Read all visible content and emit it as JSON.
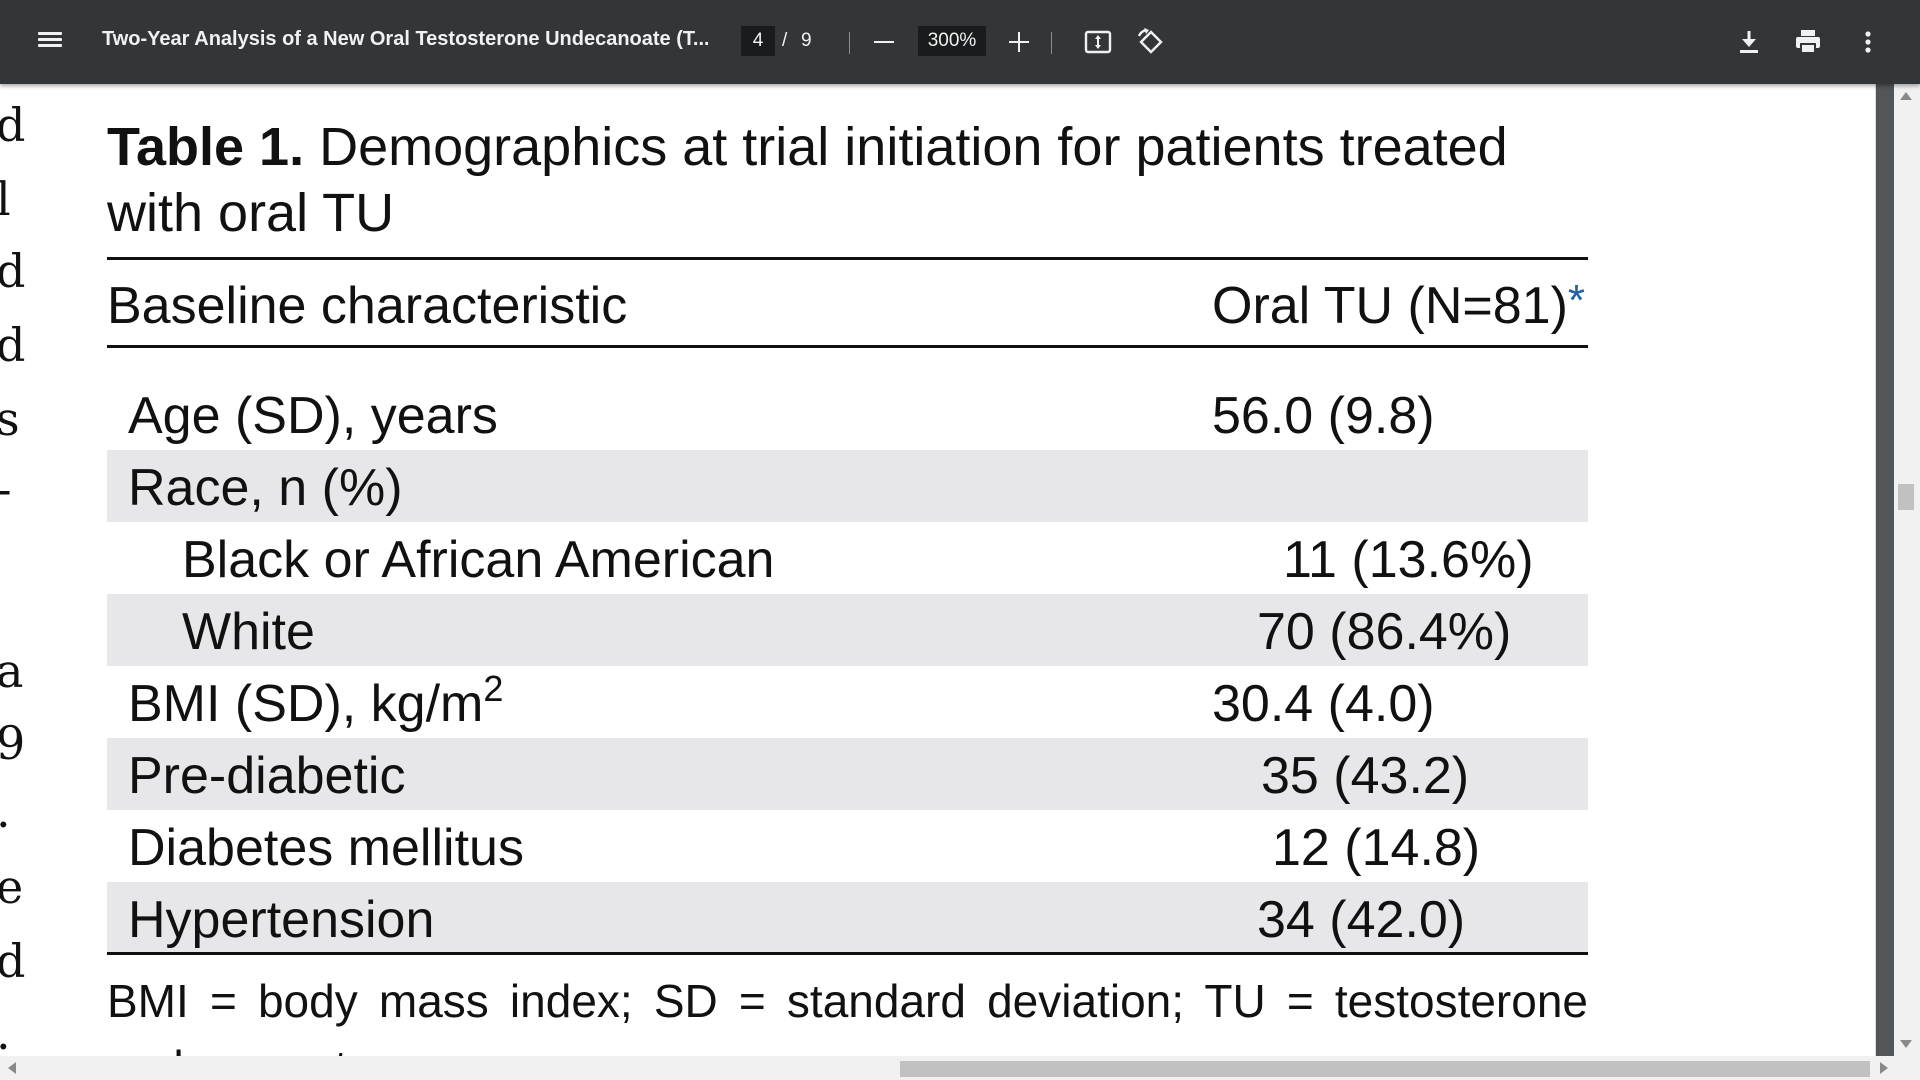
{
  "toolbar": {
    "document_title": "Two-Year Analysis of a New Oral Testosterone Undecanoate (T...",
    "current_page": "4",
    "page_separator": "/",
    "total_pages": "9",
    "zoom_level": "300%",
    "icons": [
      "menu-icon",
      "zoom-out-icon",
      "zoom-in-icon",
      "fit-to-page-icon",
      "rotate-icon",
      "download-icon",
      "print-icon",
      "more-options-icon"
    ]
  },
  "left_column_fragments": [
    "d",
    "l",
    "d",
    "d",
    "s",
    "-",
    "a",
    "9",
    ".",
    "e",
    "d",
    "."
  ],
  "table": {
    "label": "Table 1.",
    "title": "Demographics at trial initiation for patients treated with oral TU",
    "header_characteristic": "Baseline characteristic",
    "header_value": "Oral TU (N=81)",
    "header_asterisk": "*",
    "rows": [
      {
        "label": "Age (SD), years",
        "value": "56.0 (9.8)"
      },
      {
        "label": "Race, n (%)",
        "value": ""
      },
      {
        "label": "Black or African American",
        "value": "11 (13.6%)"
      },
      {
        "label": "White",
        "value": "70 (86.4%)"
      },
      {
        "label": "BMI (SD), kg/m",
        "sup": "2",
        "value": "30.4 (4.0)"
      },
      {
        "label": "Pre-diabetic",
        "value": "35 (43.2)"
      },
      {
        "label": "Diabetes mellitus",
        "value": "12 (14.8)"
      },
      {
        "label": "Hypertension",
        "value": "34 (42.0)"
      }
    ],
    "footnote": "BMI = body mass index; SD = standard deviation; TU = testosterone undecanoate"
  },
  "colors": {
    "toolbar_bg": "#323639",
    "viewer_bg": "#525659",
    "row_shade": "#e7e7e9",
    "asterisk": "#1f62a8"
  }
}
